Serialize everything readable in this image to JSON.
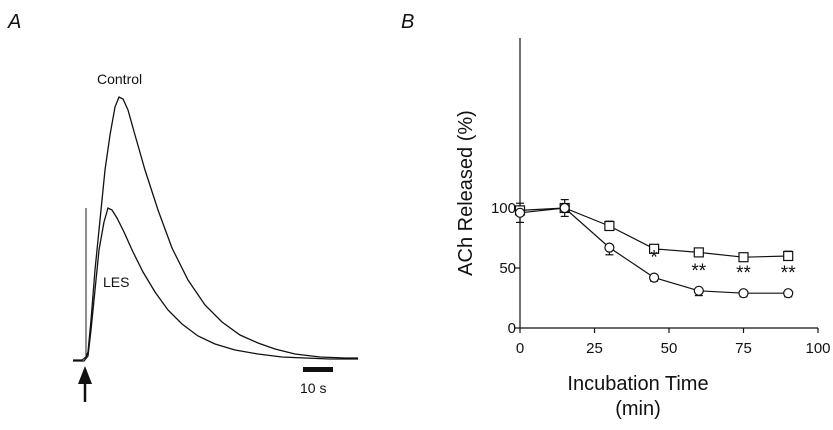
{
  "panel_a": {
    "letter": "A",
    "trace_control_label": "Control",
    "trace_les_label": "LES",
    "scale_bar_label": "10 s"
  },
  "panel_b": {
    "letter": "B"
  },
  "chart_data": {
    "type": "line",
    "title": "",
    "xlabel": "Incubation Time",
    "xlabel_unit": "(min)",
    "ylabel": "ACh Released (%)",
    "xlim": [
      0,
      100
    ],
    "ylim": [
      0,
      125
    ],
    "x_ticks": [
      0,
      25,
      50,
      75,
      100
    ],
    "y_ticks": [
      0,
      50,
      100
    ],
    "grid": false,
    "series": [
      {
        "marker": "square",
        "x": [
          0,
          15,
          30,
          45,
          60,
          75,
          90
        ],
        "values": [
          98,
          100,
          85,
          66,
          63,
          59,
          60
        ],
        "err": [
          6,
          7,
          4,
          2,
          2,
          2,
          4
        ]
      },
      {
        "marker": "circle",
        "x": [
          0,
          15,
          30,
          45,
          60,
          75,
          90
        ],
        "values": [
          96,
          100,
          67,
          42,
          31,
          29,
          29
        ],
        "err": [
          8,
          7,
          6,
          3,
          4,
          3,
          3
        ]
      }
    ],
    "annotations": [
      {
        "x": 45,
        "y": 42,
        "text": "*"
      },
      {
        "x": 60,
        "y": 31,
        "text": "**"
      },
      {
        "x": 75,
        "y": 29,
        "text": "**"
      },
      {
        "x": 90,
        "y": 29,
        "text": "**"
      }
    ]
  }
}
